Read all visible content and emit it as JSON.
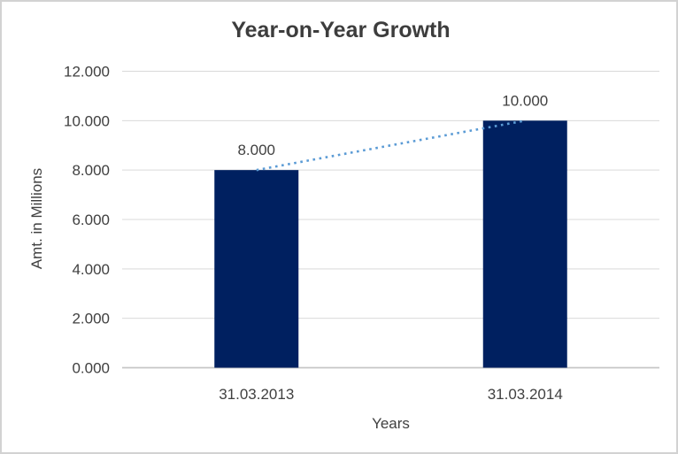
{
  "chart": {
    "title": "Year-on-Year Growth",
    "x_axis_title": "Years",
    "y_axis_title": "Amt. in Millions"
  },
  "chart_data": {
    "type": "bar",
    "title": "Year-on-Year Growth",
    "xlabel": "Years",
    "ylabel": "Amt. in Millions",
    "categories": [
      "31.03.2013",
      "31.03.2014"
    ],
    "values": [
      8,
      10
    ],
    "data_labels": [
      "8.000",
      "10.000"
    ],
    "ylim": [
      0,
      12
    ],
    "y_tick_step": 2,
    "y_ticks": [
      0,
      2,
      4,
      6,
      8,
      10,
      12
    ],
    "y_tick_labels": [
      "0.000",
      "2.000",
      "4.000",
      "6.000",
      "8.000",
      "10.000",
      "12.000"
    ],
    "grid": "horizontal",
    "legend": "none",
    "trendline": {
      "type": "line",
      "style": "dotted",
      "points_x": [
        "31.03.2013",
        "31.03.2014"
      ],
      "points_y": [
        8,
        10
      ]
    },
    "colors": {
      "bar": "#002060",
      "trendline": "#5b9bd5",
      "gridline": "#d9d9d9",
      "axis_line": "#c6c6c6",
      "text": "#404040",
      "title_text": "#3d3d3d",
      "background": "#ffffff",
      "frame_border": "#d2d2d2"
    }
  }
}
